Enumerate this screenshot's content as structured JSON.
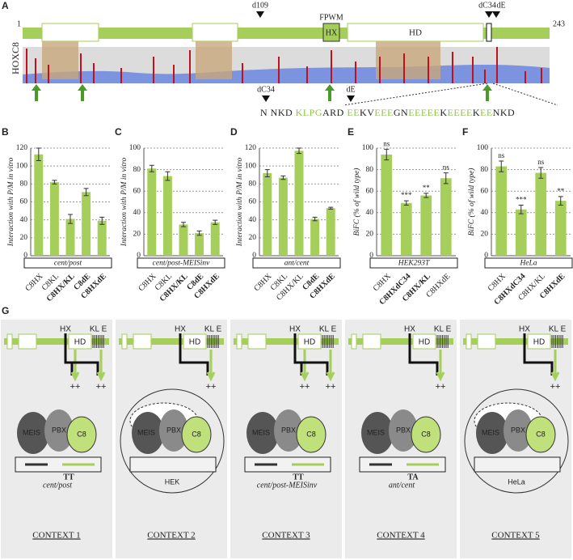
{
  "panel_a": {
    "letter": "A",
    "start": "1",
    "end": "243",
    "protein": "HOXC8",
    "d109": "d109",
    "fpwm": "FPWM",
    "hx": "HX",
    "hd": "HD",
    "dc34": "dC34",
    "de": "dE",
    "seq_dc34": "dC34",
    "seq_de": "dE",
    "sequence": [
      {
        "text": "N NKD ",
        "color": "#222222"
      },
      {
        "text": "KLPG",
        "color": "#8dc63f"
      },
      {
        "text": "ARD ",
        "color": "#222222"
      },
      {
        "text": "EE",
        "color": "#8dc63f"
      },
      {
        "text": "KV",
        "color": "#222222"
      },
      {
        "text": "EEE",
        "color": "#8dc63f"
      },
      {
        "text": "GN",
        "color": "#222222"
      },
      {
        "text": "EEEEE",
        "color": "#8dc63f"
      },
      {
        "text": "K",
        "color": "#222222"
      },
      {
        "text": "EEEE",
        "color": "#8dc63f"
      },
      {
        "text": "K",
        "color": "#222222"
      },
      {
        "text": "EE",
        "color": "#8dc63f"
      },
      {
        "text": "NKD",
        "color": "#222222"
      }
    ]
  },
  "chart_data": [
    {
      "type": "bar",
      "letter": "B",
      "ylabel": "Interaction with P/M in vitro",
      "condition": "cent/post",
      "categories": [
        "C8HX",
        "C8KL",
        "C8HX/KL",
        "C8dE",
        "C8HXdE"
      ],
      "values": [
        113,
        82,
        41,
        71,
        39
      ],
      "errors": [
        7,
        2,
        5,
        4,
        4
      ],
      "highlight": [
        false,
        false,
        true,
        true,
        true
      ],
      "color": "#a6ce5a",
      "highlight_color": "#d0202e",
      "ylim": [
        0,
        120
      ],
      "yticks": [
        0,
        20,
        40,
        60,
        80,
        100,
        120
      ],
      "grid": true
    },
    {
      "type": "bar",
      "letter": "C",
      "ylabel": "Interaction with P/M in vitro",
      "condition": "cent/post-MEISinv",
      "categories": [
        "C8HX",
        "C8KL",
        "C8HX/KL",
        "C8dE",
        "C8HXdE"
      ],
      "values": [
        81,
        74,
        29,
        21,
        31
      ],
      "errors": [
        3,
        4,
        2,
        2,
        2
      ],
      "highlight": [
        false,
        false,
        true,
        true,
        true
      ],
      "color": "#a6ce5a",
      "highlight_color": "#d0202e",
      "ylim": [
        0,
        100
      ],
      "yticks": [
        0,
        20,
        40,
        60,
        80,
        100
      ],
      "grid": true
    },
    {
      "type": "bar",
      "letter": "D",
      "ylabel": "Interaction with P/M in vitro",
      "condition": "ant/cent",
      "categories": [
        "C8HX",
        "C8KL",
        "C8HX/KL",
        "C8dE",
        "C8HXdE"
      ],
      "values": [
        92,
        87,
        117,
        41,
        53
      ],
      "errors": [
        4,
        2,
        3,
        2,
        1
      ],
      "highlight": [
        false,
        false,
        false,
        true,
        true
      ],
      "color": "#a6ce5a",
      "highlight_color": "#d0202e",
      "ylim": [
        0,
        120
      ],
      "yticks": [
        0,
        20,
        40,
        60,
        80,
        100,
        120
      ],
      "grid": true
    },
    {
      "type": "bar",
      "letter": "E",
      "ylabel": "BiFC (% of wild type)",
      "condition": "HEK293T",
      "categories": [
        "C8HX",
        "C8HXdC34",
        "C8HX/KL",
        "C8HXdE"
      ],
      "values": [
        94,
        49,
        56,
        72
      ],
      "errors": [
        5,
        2,
        2,
        5
      ],
      "annotations": [
        "ns",
        "***",
        "**",
        "ns"
      ],
      "highlight": [
        false,
        true,
        true,
        false
      ],
      "color": "#a6ce5a",
      "highlight_color": "#d0202e",
      "ylim": [
        0,
        100
      ],
      "yticks": [
        0,
        20,
        40,
        60,
        80,
        100
      ],
      "grid": true
    },
    {
      "type": "bar",
      "letter": "F",
      "ylabel": "BiFC (% of wild type)",
      "condition": "HeLa",
      "categories": [
        "C8HX",
        "C8HXdC34",
        "C8HX/KL",
        "C8HXdE"
      ],
      "values": [
        83,
        43,
        77,
        51
      ],
      "errors": [
        5,
        4,
        5,
        4
      ],
      "annotations": [
        "ns",
        "***",
        "ns",
        "**"
      ],
      "highlight": [
        false,
        true,
        false,
        true
      ],
      "color": "#a6ce5a",
      "highlight_color": "#d0202e",
      "ylim": [
        0,
        100
      ],
      "yticks": [
        0,
        20,
        40,
        60,
        80,
        100
      ],
      "grid": true
    }
  ],
  "panel_g": {
    "letter": "G",
    "contexts": [
      {
        "hx": "HX",
        "hd": "HD",
        "kl": "KL",
        "e": "E",
        "plus": [
          "++",
          "++"
        ],
        "meis": "MEIS",
        "pbx": "PBX",
        "c8": "C8",
        "site": "TT",
        "dna_label": "cent/post",
        "label": "CONTEXT 1"
      },
      {
        "hx": "HX",
        "hd": "HD",
        "kl": "KL",
        "e": "E",
        "plus": [
          "++"
        ],
        "meis": "MEIS",
        "pbx": "PBX",
        "c8": "C8",
        "dna_label": "HEK",
        "enclosed": true,
        "label": "CONTEXT 2"
      },
      {
        "hx": "HX",
        "hd": "HD",
        "kl": "KL",
        "e": "E",
        "plus": [
          "++",
          "++"
        ],
        "meis": "MEIS",
        "pbx": "PBX",
        "c8": "C8",
        "site": "TT",
        "dna_label": "cent/post-MEISinv",
        "label": "CONTEXT 3"
      },
      {
        "hx": "HX",
        "hd": "HD",
        "kl": "KL",
        "e": "E",
        "plus": [
          "++"
        ],
        "meis": "MEIS",
        "pbx": "PBX",
        "c8": "C8",
        "site": "TA",
        "dna_label": "ant/cent",
        "label": "CONTEXT 4"
      },
      {
        "hx": "HX",
        "hd": "HD",
        "kl": "KL",
        "e": "E",
        "plus": [
          "++"
        ],
        "meis": "MEIS",
        "pbx": "PBX",
        "c8": "C8",
        "dna_label": "HeLa",
        "enclosed": true,
        "label": "CONTEXT 5"
      }
    ]
  }
}
